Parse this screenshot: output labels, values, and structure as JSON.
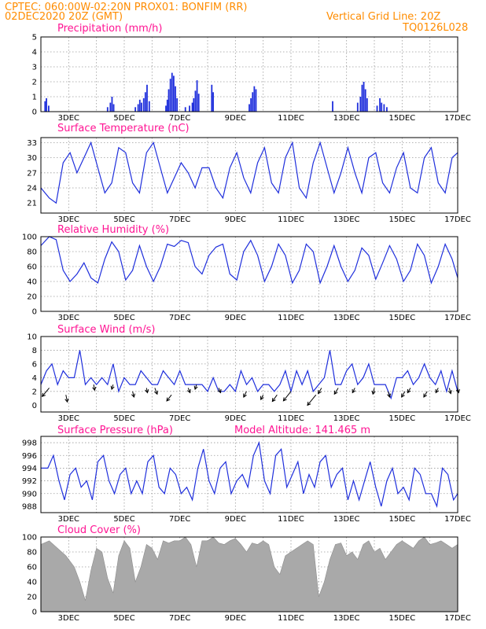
{
  "header": {
    "line1": "CPTEC:   060:00W-02:20N   PROX01: BONFIM (RR)",
    "line2": "02DEC2020 20Z (GMT)",
    "grid_note": "Vertical Grid Line: 20Z",
    "code": "TQ0126L028"
  },
  "colors": {
    "header": "#ff8c00",
    "title": "#ff1493",
    "line": "#1f2fdc",
    "bar": "#1f2fdc",
    "cloud": "#a9a9a9",
    "arrow": "#000000"
  },
  "x_tick_labels": [
    "3DEC",
    "5DEC",
    "7DEC",
    "9DEC",
    "11DEC",
    "13DEC",
    "15DEC",
    "17DEC"
  ],
  "chart_data": [
    {
      "type": "bar",
      "title": "Precipitation (mm/h)",
      "ylim": [
        0,
        5
      ],
      "yticks": [
        0,
        1,
        2,
        3,
        4,
        5
      ],
      "x_range_days": [
        0,
        15
      ],
      "x_units": "days from 02DEC2020 20Z",
      "bars": [
        [
          0.15,
          0.7
        ],
        [
          0.2,
          0.9
        ],
        [
          0.28,
          0.4
        ],
        [
          2.4,
          0.3
        ],
        [
          2.5,
          0.6
        ],
        [
          2.56,
          1.0
        ],
        [
          2.62,
          0.5
        ],
        [
          3.4,
          0.3
        ],
        [
          3.5,
          0.5
        ],
        [
          3.56,
          0.8
        ],
        [
          3.62,
          0.6
        ],
        [
          3.7,
          0.9
        ],
        [
          3.76,
          1.3
        ],
        [
          3.82,
          1.8
        ],
        [
          3.9,
          0.7
        ],
        [
          4.5,
          0.4
        ],
        [
          4.55,
          0.8
        ],
        [
          4.6,
          1.5
        ],
        [
          4.66,
          2.2
        ],
        [
          4.72,
          2.6
        ],
        [
          4.78,
          2.4
        ],
        [
          4.84,
          1.7
        ],
        [
          4.9,
          0.9
        ],
        [
          5.2,
          0.3
        ],
        [
          5.35,
          0.4
        ],
        [
          5.45,
          0.6
        ],
        [
          5.5,
          0.9
        ],
        [
          5.56,
          1.4
        ],
        [
          5.62,
          2.1
        ],
        [
          5.68,
          1.2
        ],
        [
          6.15,
          1.8
        ],
        [
          6.2,
          1.3
        ],
        [
          7.5,
          0.5
        ],
        [
          7.56,
          0.9
        ],
        [
          7.62,
          1.3
        ],
        [
          7.68,
          1.7
        ],
        [
          7.74,
          1.5
        ],
        [
          10.5,
          0.7
        ],
        [
          11.4,
          0.6
        ],
        [
          11.5,
          1.0
        ],
        [
          11.56,
          1.8
        ],
        [
          11.62,
          2.0
        ],
        [
          11.68,
          1.5
        ],
        [
          11.74,
          0.9
        ],
        [
          12.1,
          0.4
        ],
        [
          12.2,
          0.9
        ],
        [
          12.26,
          0.6
        ],
        [
          12.35,
          0.5
        ],
        [
          12.45,
          0.3
        ]
      ]
    },
    {
      "type": "line",
      "title": "Surface Temperature (nC)",
      "ylim": [
        19,
        34
      ],
      "yticks": [
        21,
        24,
        27,
        30,
        33
      ],
      "x_units": "days from 02DEC2020 20Z",
      "x": [
        0,
        0.3,
        0.55,
        0.8,
        1.05,
        1.3,
        1.55,
        1.8,
        2.05,
        2.3,
        2.55,
        2.8,
        3.05,
        3.3,
        3.55,
        3.8,
        4.05,
        4.3,
        4.55,
        4.8,
        5.05,
        5.3,
        5.55,
        5.8,
        6.05,
        6.3,
        6.55,
        6.8,
        7.05,
        7.3,
        7.55,
        7.8,
        8.05,
        8.3,
        8.55,
        8.8,
        9.05,
        9.3,
        9.55,
        9.8,
        10.05,
        10.3,
        10.55,
        10.8,
        11.05,
        11.3,
        11.55,
        11.8,
        12.05,
        12.3,
        12.55,
        12.8,
        13.05,
        13.3,
        13.55,
        13.8,
        14.05,
        14.3,
        14.55,
        14.8,
        15
      ],
      "y": [
        24,
        22,
        21,
        29,
        31,
        27,
        30,
        33,
        28,
        23,
        25,
        32,
        31,
        25,
        23,
        31,
        33,
        28,
        23,
        26,
        29,
        27,
        24,
        28,
        28,
        24,
        22,
        28,
        31,
        26,
        23,
        29,
        32,
        25,
        23,
        30,
        33,
        24,
        22,
        29,
        33,
        28,
        23,
        27,
        32,
        27,
        23,
        30,
        31,
        25,
        23,
        28,
        31,
        24,
        23,
        30,
        32,
        25,
        23,
        30,
        31
      ]
    },
    {
      "type": "line",
      "title": "Relative Humidity (%)",
      "ylim": [
        0,
        100
      ],
      "yticks": [
        0,
        20,
        40,
        60,
        80,
        100
      ],
      "x_units": "days from 02DEC2020 20Z",
      "x": [
        0,
        0.3,
        0.55,
        0.8,
        1.05,
        1.3,
        1.55,
        1.8,
        2.05,
        2.3,
        2.55,
        2.8,
        3.05,
        3.3,
        3.55,
        3.8,
        4.05,
        4.3,
        4.55,
        4.8,
        5.05,
        5.3,
        5.55,
        5.8,
        6.05,
        6.3,
        6.55,
        6.8,
        7.05,
        7.3,
        7.55,
        7.8,
        8.05,
        8.3,
        8.55,
        8.8,
        9.05,
        9.3,
        9.55,
        9.8,
        10.05,
        10.3,
        10.55,
        10.8,
        11.05,
        11.3,
        11.55,
        11.8,
        12.05,
        12.3,
        12.55,
        12.8,
        13.05,
        13.3,
        13.55,
        13.8,
        14.05,
        14.3,
        14.55,
        14.8,
        15
      ],
      "y": [
        88,
        100,
        96,
        55,
        40,
        50,
        65,
        45,
        38,
        70,
        93,
        80,
        42,
        55,
        88,
        60,
        40,
        60,
        90,
        87,
        95,
        92,
        60,
        50,
        75,
        86,
        90,
        50,
        42,
        80,
        95,
        75,
        40,
        60,
        90,
        75,
        38,
        55,
        90,
        80,
        38,
        60,
        88,
        60,
        40,
        55,
        85,
        75,
        43,
        65,
        88,
        70,
        40,
        55,
        90,
        75,
        38,
        60,
        90,
        70,
        45
      ]
    },
    {
      "type": "line",
      "title": "Surface Wind (m/s)",
      "ylim": [
        -1,
        10
      ],
      "yticks": [
        0,
        2,
        4,
        6,
        8,
        10
      ],
      "x_units": "days from 02DEC2020 20Z",
      "x": [
        0,
        0.2,
        0.4,
        0.6,
        0.8,
        1.0,
        1.2,
        1.4,
        1.6,
        1.8,
        2.0,
        2.2,
        2.4,
        2.6,
        2.8,
        3.0,
        3.2,
        3.4,
        3.6,
        3.8,
        4.0,
        4.2,
        4.4,
        4.6,
        4.8,
        5.0,
        5.2,
        5.4,
        5.6,
        5.8,
        6.0,
        6.2,
        6.4,
        6.6,
        6.8,
        7.0,
        7.2,
        7.4,
        7.6,
        7.8,
        8.0,
        8.2,
        8.4,
        8.6,
        8.8,
        9.0,
        9.2,
        9.4,
        9.6,
        9.8,
        10.0,
        10.2,
        10.4,
        10.6,
        10.8,
        11.0,
        11.2,
        11.4,
        11.6,
        11.8,
        12.0,
        12.2,
        12.4,
        12.6,
        12.8,
        13.0,
        13.2,
        13.4,
        13.6,
        13.8,
        14.0,
        14.2,
        14.4,
        14.6,
        14.8,
        15
      ],
      "y": [
        3,
        5,
        6,
        3,
        5,
        4,
        4,
        8,
        3,
        4,
        3,
        4,
        3,
        6,
        2,
        4,
        3,
        3,
        5,
        4,
        3,
        3,
        5,
        4,
        3,
        5,
        3,
        3,
        3,
        3,
        2,
        4,
        2,
        2,
        3,
        2,
        5,
        3,
        4,
        2,
        3,
        3,
        2,
        3,
        5,
        2,
        5,
        3,
        5,
        2,
        3,
        4,
        8,
        3,
        3,
        5,
        6,
        3,
        4,
        6,
        3,
        3,
        3,
        1,
        4,
        4,
        5,
        3,
        4,
        6,
        4,
        3,
        5,
        2,
        5,
        2
      ],
      "arrows": [
        [
          0.3,
          2.5,
          -1.5,
          -1.8
        ],
        [
          0.9,
          1.5,
          0.3,
          -1.5
        ],
        [
          1.9,
          3.0,
          0.2,
          -1.2
        ],
        [
          2.6,
          3.0,
          -0.3,
          -1.0
        ],
        [
          3.3,
          2.0,
          0.3,
          -1.2
        ],
        [
          3.8,
          2.5,
          0.2,
          -1.0
        ],
        [
          4.1,
          2.5,
          0.5,
          -1.3
        ],
        [
          4.7,
          1.5,
          -1.0,
          -1.3
        ],
        [
          5.3,
          2.5,
          0.4,
          -1.0
        ],
        [
          5.6,
          3.0,
          -0.3,
          -1.0
        ],
        [
          6.4,
          2.5,
          0.4,
          -1.0
        ],
        [
          7.4,
          2.0,
          -0.6,
          -1.2
        ],
        [
          8.0,
          1.5,
          -0.5,
          -1.0
        ],
        [
          8.5,
          1.5,
          -1.0,
          -1.4
        ],
        [
          9.0,
          2.0,
          -1.6,
          -2.0
        ],
        [
          9.9,
          1.5,
          -1.8,
          -2.2
        ],
        [
          10.1,
          2.5,
          -0.7,
          -1.2
        ],
        [
          10.7,
          2.5,
          -0.8,
          -1.3
        ],
        [
          11.3,
          2.5,
          -0.5,
          -1.0
        ],
        [
          12.0,
          2.5,
          -0.3,
          -1.3
        ],
        [
          12.5,
          2.0,
          0.3,
          -1.2
        ],
        [
          13.1,
          2.0,
          -0.7,
          -1.2
        ],
        [
          13.3,
          2.5,
          -0.6,
          -1.0
        ],
        [
          13.9,
          2.0,
          -0.7,
          -1.2
        ],
        [
          14.3,
          2.5,
          -0.5,
          -1.0
        ],
        [
          14.7,
          2.5,
          0.3,
          -1.2
        ],
        [
          15.0,
          2.5,
          0.2,
          -1.0
        ]
      ]
    },
    {
      "type": "line",
      "title": "Surface Pressure (hPa)",
      "ylim": [
        987,
        999
      ],
      "yticks": [
        988,
        990,
        992,
        994,
        996,
        998
      ],
      "x_units": "days from 02DEC2020 20Z",
      "x": [
        0,
        0.25,
        0.45,
        0.65,
        0.85,
        1.05,
        1.25,
        1.45,
        1.65,
        1.85,
        2.05,
        2.25,
        2.45,
        2.65,
        2.85,
        3.05,
        3.25,
        3.45,
        3.65,
        3.85,
        4.05,
        4.25,
        4.45,
        4.65,
        4.85,
        5.05,
        5.25,
        5.45,
        5.65,
        5.85,
        6.05,
        6.25,
        6.45,
        6.65,
        6.85,
        7.05,
        7.25,
        7.45,
        7.65,
        7.85,
        8.05,
        8.25,
        8.45,
        8.65,
        8.85,
        9.05,
        9.25,
        9.45,
        9.65,
        9.85,
        10.05,
        10.25,
        10.45,
        10.65,
        10.85,
        11.05,
        11.25,
        11.45,
        11.65,
        11.85,
        12.05,
        12.25,
        12.45,
        12.65,
        12.85,
        13.05,
        13.25,
        13.45,
        13.65,
        13.85,
        14.05,
        14.25,
        14.45,
        14.65,
        14.85,
        15
      ],
      "y": [
        994,
        994,
        996,
        992,
        989,
        993,
        994,
        991,
        992,
        989,
        995,
        996,
        992,
        990,
        993,
        994,
        990,
        992,
        990,
        995,
        996,
        991,
        990,
        994,
        993,
        990,
        991,
        989,
        994,
        997,
        992,
        990,
        994,
        995,
        990,
        992,
        993,
        991,
        996,
        998,
        992,
        990,
        996,
        997,
        991,
        993,
        995,
        990,
        993,
        991,
        995,
        996,
        991,
        993,
        994,
        989,
        992,
        989,
        992,
        995,
        991,
        988,
        992,
        994,
        990,
        991,
        989,
        994,
        993,
        990,
        990,
        988,
        994,
        993,
        989,
        990
      ]
    },
    {
      "type": "area",
      "title": "Cloud Cover (%)",
      "ylim": [
        0,
        100
      ],
      "yticks": [
        0,
        20,
        40,
        60,
        80,
        100
      ],
      "x_units": "days from 02DEC2020 20Z",
      "x": [
        0,
        0.3,
        0.6,
        0.9,
        1.2,
        1.4,
        1.6,
        1.8,
        2.0,
        2.2,
        2.4,
        2.6,
        2.8,
        3.0,
        3.2,
        3.4,
        3.6,
        3.8,
        4.0,
        4.2,
        4.4,
        4.6,
        4.8,
        5.0,
        5.2,
        5.4,
        5.6,
        5.8,
        6.0,
        6.2,
        6.4,
        6.6,
        6.8,
        7.0,
        7.2,
        7.4,
        7.6,
        7.8,
        8.0,
        8.2,
        8.4,
        8.6,
        8.8,
        9.0,
        9.2,
        9.4,
        9.6,
        9.8,
        10.0,
        10.2,
        10.4,
        10.6,
        10.8,
        11.0,
        11.2,
        11.4,
        11.6,
        11.8,
        12.0,
        12.2,
        12.4,
        12.6,
        12.8,
        13.0,
        13.2,
        13.4,
        13.6,
        13.8,
        14.0,
        14.2,
        14.4,
        14.6,
        14.8,
        15
      ],
      "y": [
        90,
        95,
        85,
        75,
        60,
        40,
        15,
        55,
        85,
        80,
        45,
        25,
        75,
        95,
        85,
        40,
        60,
        90,
        85,
        70,
        95,
        92,
        95,
        95,
        100,
        90,
        60,
        95,
        95,
        100,
        92,
        90,
        95,
        98,
        90,
        80,
        92,
        90,
        95,
        90,
        60,
        50,
        75,
        80,
        85,
        90,
        95,
        90,
        20,
        40,
        70,
        90,
        92,
        75,
        80,
        70,
        90,
        95,
        80,
        85,
        70,
        80,
        90,
        95,
        90,
        85,
        95,
        100,
        90,
        92,
        95,
        90,
        85,
        90
      ]
    }
  ],
  "panel_titles": {
    "p0": "Precipitation (mm/h)",
    "p1": "Surface Temperature (nC)",
    "p2": "Relative Humidity (%)",
    "p3": "Surface Wind (m/s)",
    "p4": "Surface Pressure (hPa)",
    "p4_extra": "Model Altitude: 141.465 m",
    "p5": "Cloud Cover (%)"
  }
}
